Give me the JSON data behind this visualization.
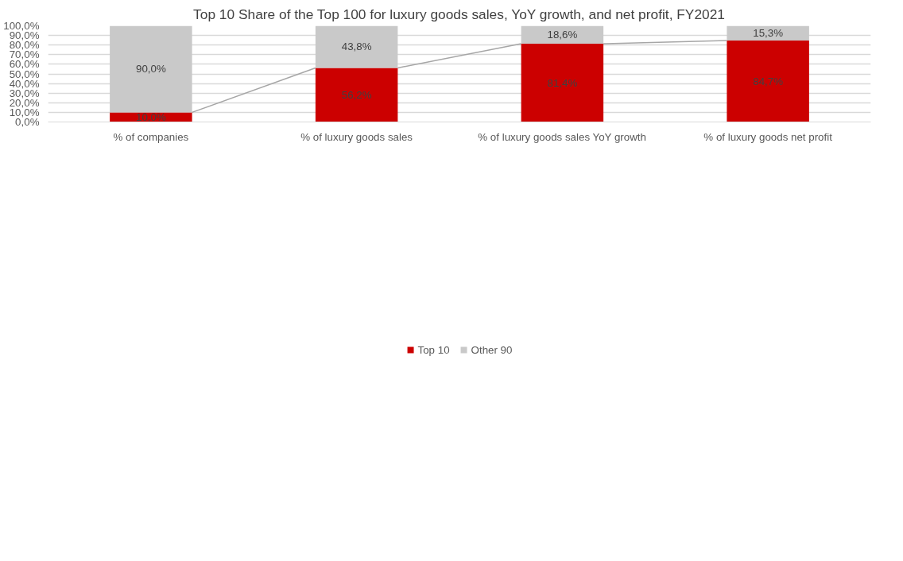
{
  "chart_data": {
    "type": "bar",
    "title": "Top 10 Share of the Top 100 for luxury goods sales, YoY growth, and net profit, FY2021",
    "categories": [
      "% of companies",
      "% of luxury goods sales",
      "% of luxury goods sales YoY growth",
      "% of luxury goods net profit"
    ],
    "stacked": true,
    "series": [
      {
        "name": "Top 10",
        "color": "#cc0000",
        "values": [
          10.0,
          56.2,
          81.4,
          84.7
        ],
        "value_labels": [
          "10,0%",
          "56,2%",
          "81,4%",
          "84,7%"
        ]
      },
      {
        "name": "Other 90",
        "color": "#c9c9c9",
        "values": [
          90.0,
          43.8,
          18.6,
          15.3
        ],
        "value_labels": [
          "90,0%",
          "43,8%",
          "18,6%",
          "15,3%"
        ]
      }
    ],
    "ylim": [
      0,
      100
    ],
    "yticks": [
      {
        "value": 0,
        "label": "0,0%"
      },
      {
        "value": 10,
        "label": "10,0%"
      },
      {
        "value": 20,
        "label": "20,0%"
      },
      {
        "value": 30,
        "label": "30,0%"
      },
      {
        "value": 40,
        "label": "40,0%"
      },
      {
        "value": 50,
        "label": "50,0%"
      },
      {
        "value": 60,
        "label": "60,0%"
      },
      {
        "value": 70,
        "label": "70,0%"
      },
      {
        "value": 80,
        "label": "80,0%"
      },
      {
        "value": 90,
        "label": "90,0%"
      },
      {
        "value": 100,
        "label": "100,0%"
      }
    ],
    "grid": "y",
    "legend": "bottom"
  }
}
